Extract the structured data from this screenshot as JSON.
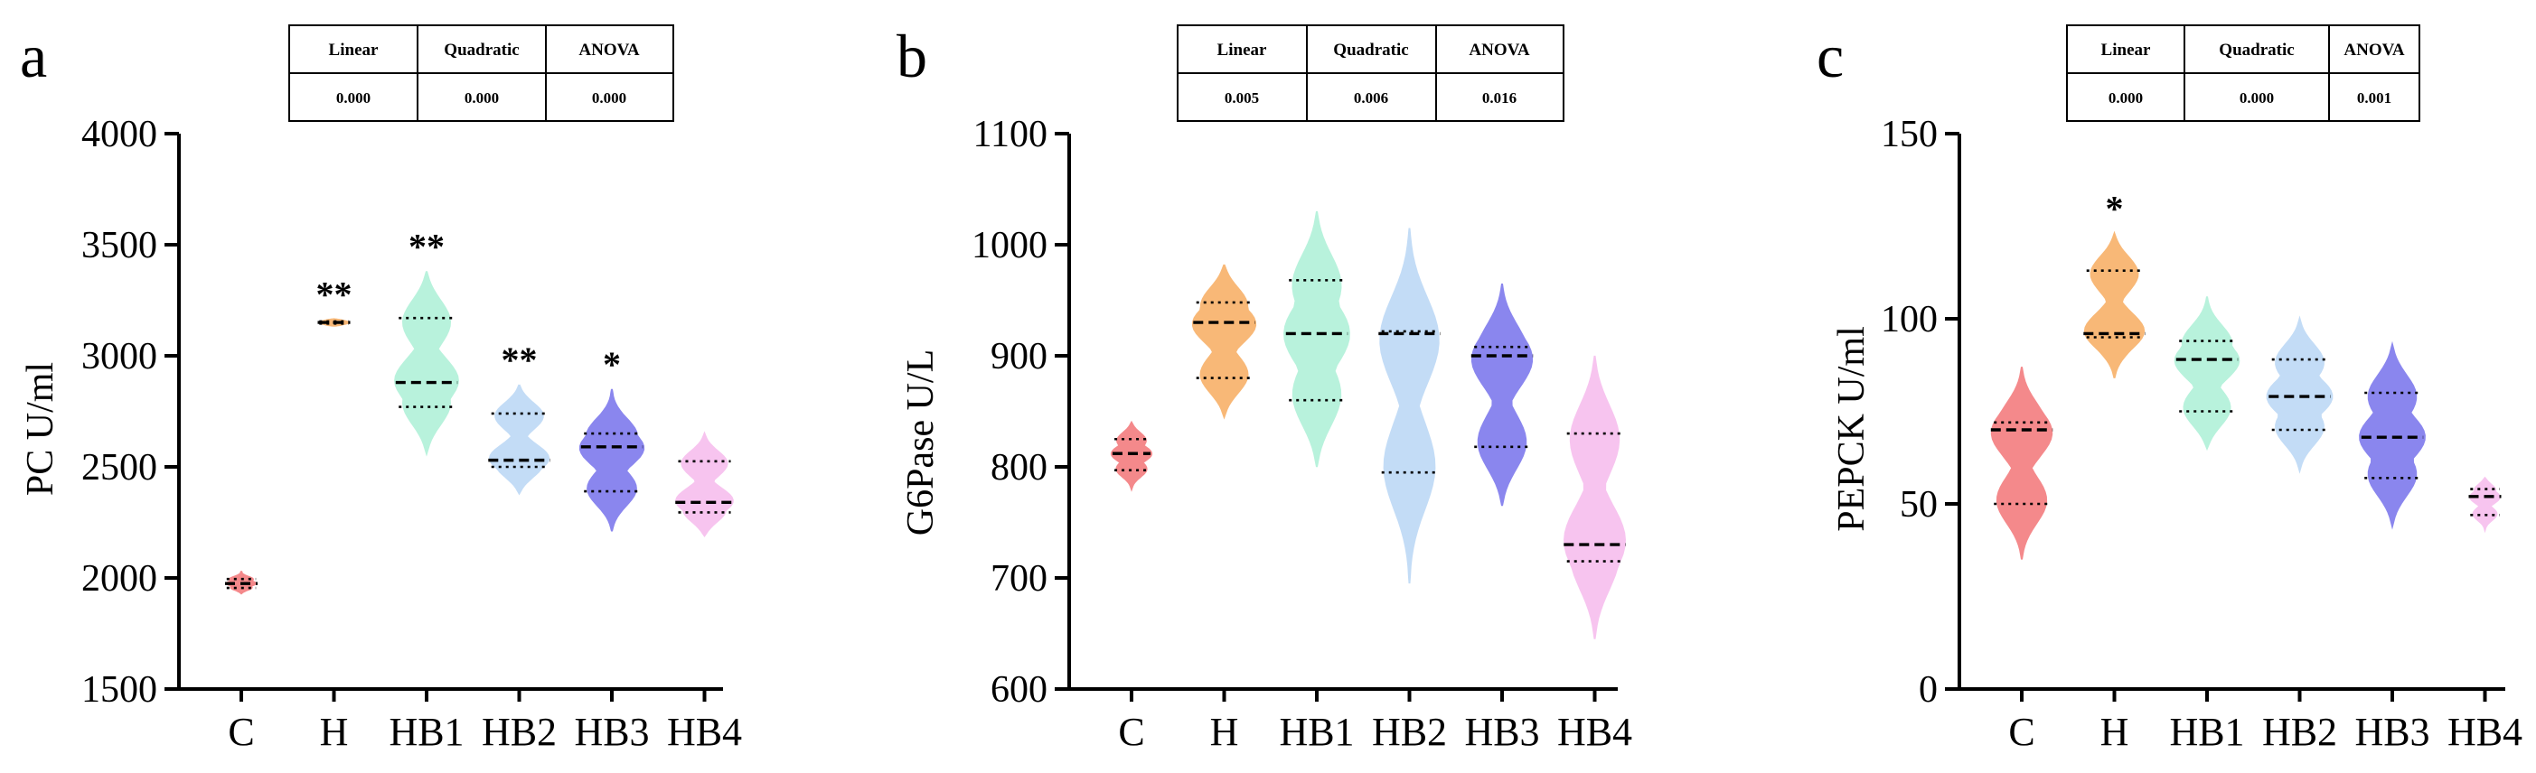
{
  "colors": {
    "C": "#f4898b",
    "H": "#f8b877",
    "HB1": "#b8f2dc",
    "HB2": "#c3dcf6",
    "HB3": "#8a86ee",
    "HB4": "#f7c4ef"
  },
  "chart_data": [
    {
      "type": "violin",
      "panel": "a",
      "ylabel": "PC  U/ml",
      "ylim": [
        1500,
        4000
      ],
      "yticks": [
        "1500",
        "2000",
        "2500",
        "3000",
        "3500",
        "4000"
      ],
      "categories": [
        "C",
        "H",
        "HB1",
        "HB2",
        "HB3",
        "HB4"
      ],
      "stats_table": {
        "headers": [
          "Linear",
          "Quadratic",
          "ANOVA"
        ],
        "values": [
          "0.000",
          "0.000",
          "0.000"
        ]
      },
      "groups": [
        {
          "name": "C",
          "min": 1930,
          "max": 2030,
          "median": 1975,
          "q1": 1955,
          "q3": 1995,
          "sig": ""
        },
        {
          "name": "H",
          "min": 3135,
          "max": 3165,
          "median": 3150,
          "q1": 3145,
          "q3": 3155,
          "sig": "**"
        },
        {
          "name": "HB1",
          "min": 2560,
          "max": 3380,
          "median": 2880,
          "q1": 2770,
          "q3": 3170,
          "sig": "**"
        },
        {
          "name": "HB2",
          "min": 2380,
          "max": 2870,
          "median": 2530,
          "q1": 2500,
          "q3": 2740,
          "sig": "**"
        },
        {
          "name": "HB3",
          "min": 2210,
          "max": 2850,
          "median": 2590,
          "q1": 2390,
          "q3": 2650,
          "sig": "*"
        },
        {
          "name": "HB4",
          "min": 2190,
          "max": 2650,
          "median": 2340,
          "q1": 2295,
          "q3": 2525,
          "sig": ""
        }
      ]
    },
    {
      "type": "violin",
      "panel": "b",
      "ylabel": "G6Pase  U/L",
      "ylim": [
        600,
        1100
      ],
      "yticks": [
        "600",
        "700",
        "800",
        "900",
        "1000",
        "1100"
      ],
      "categories": [
        "C",
        "H",
        "HB1",
        "HB2",
        "HB3",
        "HB4"
      ],
      "stats_table": {
        "headers": [
          "Linear",
          "Quadratic",
          "ANOVA"
        ],
        "values": [
          "0.005",
          "0.006",
          "0.016"
        ]
      },
      "groups": [
        {
          "name": "C",
          "min": 780,
          "max": 840,
          "median": 812,
          "q1": 797,
          "q3": 825,
          "sig": ""
        },
        {
          "name": "H",
          "min": 845,
          "max": 982,
          "median": 930,
          "q1": 880,
          "q3": 948,
          "sig": ""
        },
        {
          "name": "HB1",
          "min": 800,
          "max": 1030,
          "median": 920,
          "q1": 860,
          "q3": 968,
          "sig": ""
        },
        {
          "name": "HB2",
          "min": 695,
          "max": 1015,
          "median": 920,
          "q1": 795,
          "q3": 922,
          "sig": ""
        },
        {
          "name": "HB3",
          "min": 765,
          "max": 965,
          "median": 900,
          "q1": 818,
          "q3": 908,
          "sig": ""
        },
        {
          "name": "HB4",
          "min": 645,
          "max": 900,
          "median": 730,
          "q1": 715,
          "q3": 830,
          "sig": ""
        }
      ]
    },
    {
      "type": "violin",
      "panel": "c",
      "ylabel": "PEPCK  U/ml",
      "ylim": [
        0,
        150
      ],
      "yticks": [
        "0",
        "50",
        "100",
        "150"
      ],
      "categories": [
        "C",
        "H",
        "HB1",
        "HB2",
        "HB3",
        "HB4"
      ],
      "stats_table": {
        "headers": [
          "Linear",
          "Quadratic",
          "ANOVA"
        ],
        "values": [
          "0.000",
          "0.000",
          "0.001"
        ]
      },
      "groups": [
        {
          "name": "C",
          "min": 35,
          "max": 87,
          "median": 70,
          "q1": 50,
          "q3": 72,
          "sig": ""
        },
        {
          "name": "H",
          "min": 84,
          "max": 123,
          "median": 96,
          "q1": 95,
          "q3": 113,
          "sig": "*"
        },
        {
          "name": "HB1",
          "min": 65,
          "max": 106,
          "median": 89,
          "q1": 75,
          "q3": 94,
          "sig": ""
        },
        {
          "name": "HB2",
          "min": 59,
          "max": 100,
          "median": 79,
          "q1": 70,
          "q3": 89,
          "sig": ""
        },
        {
          "name": "HB3",
          "min": 44,
          "max": 93,
          "median": 68,
          "q1": 57,
          "q3": 80,
          "sig": ""
        },
        {
          "name": "HB4",
          "min": 43,
          "max": 57,
          "median": 52,
          "q1": 47,
          "q3": 54,
          "sig": ""
        }
      ]
    }
  ]
}
